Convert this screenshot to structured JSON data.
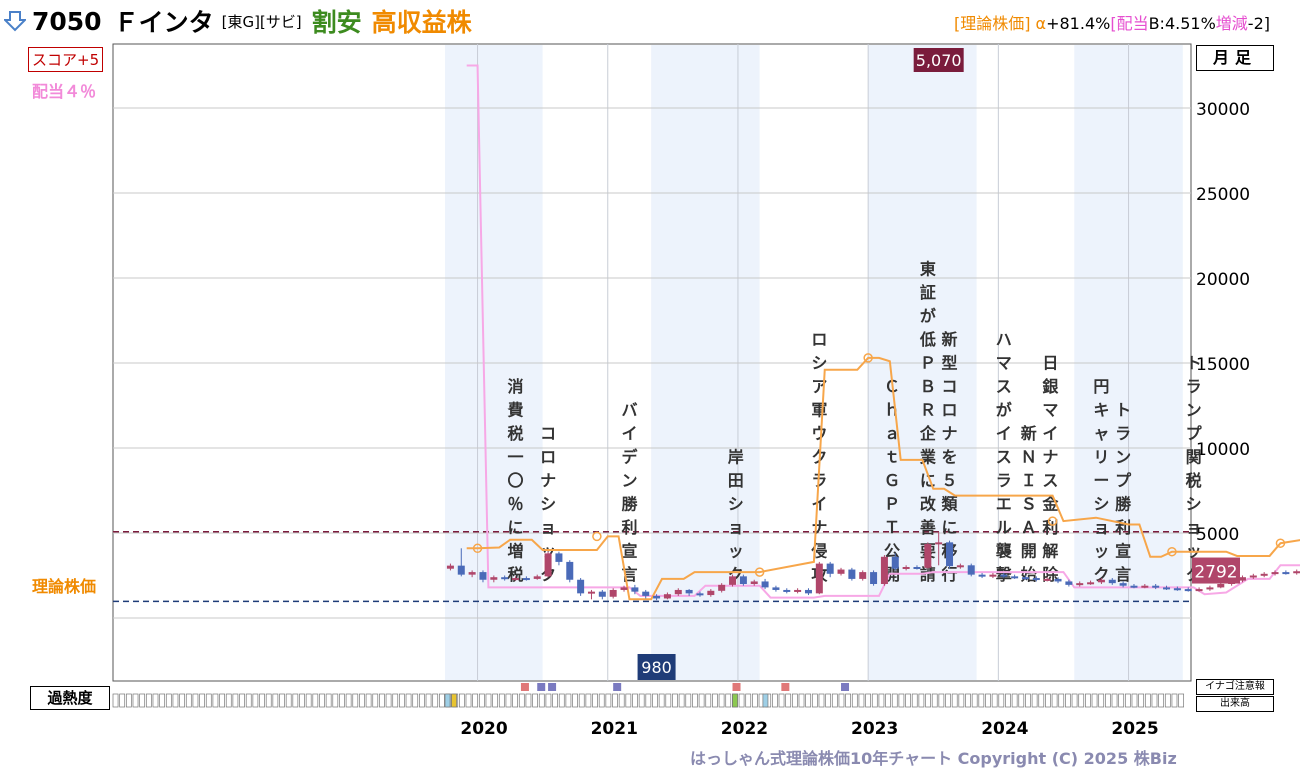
{
  "header": {
    "arrow_icon": "down-arrow-icon",
    "code": "7050",
    "name": "Ｆインタ",
    "tags": "[東G][サビ]",
    "valuation": "割安",
    "category": "高収益株",
    "riron_label": "[理論株価]",
    "alpha_label": "α",
    "alpha": "+81.4%",
    "haito_label": "[配当",
    "haito_value": "B:4.51%",
    "zougen_label": "増減",
    "zougen_value": "-2]"
  },
  "badges": {
    "score": "スコア+5",
    "haito": "配当４％",
    "riron": "理論株価",
    "timeframe": "月足",
    "overheat": "過熱度",
    "legend_inago": "イナゴ注意報",
    "legend_volume": "出来高",
    "copyright": "はっしゃん式理論株価10年チャート Copyright (C) 2025 株Biz"
  },
  "colors": {
    "theory": "#f7a64a",
    "dividend": "#f7a8e6",
    "candle_up": "#b0466a",
    "candle_down": "#4a6ab8",
    "max_line": "#7a1c3c",
    "min_line": "#1f3c78",
    "band": "#edf3fc"
  },
  "chart_data": {
    "type": "candlestick",
    "ylim": [
      -2000,
      34000
    ],
    "y_ticks": [
      5000,
      10000,
      15000,
      20000,
      25000,
      30000
    ],
    "y_tick_labels": [
      "5000",
      "10000",
      "15000",
      "20000",
      "25000",
      "30000"
    ],
    "x_labels": [
      "2020",
      "2021",
      "2022",
      "2023",
      "2024",
      "2025"
    ],
    "year_start_month": [
      3,
      15,
      27,
      39,
      51,
      63
    ],
    "month_count": 80,
    "max_price": 5070,
    "max_label": "5,070",
    "min_price": 980,
    "min_label": "980",
    "current_price": 2792,
    "current_label": "2792",
    "candles": [
      [
        0,
        2900,
        3080,
        2800,
        3200
      ],
      [
        1,
        3080,
        2550,
        2450,
        4100
      ],
      [
        2,
        2550,
        2700,
        2400,
        2800
      ],
      [
        3,
        2700,
        2250,
        2100,
        2800
      ],
      [
        4,
        2250,
        2400,
        2100,
        2500
      ],
      [
        5,
        2400,
        2300,
        2200,
        2500
      ],
      [
        6,
        2300,
        2350,
        2200,
        2450
      ],
      [
        7,
        2350,
        2300,
        2200,
        2450
      ],
      [
        8,
        2300,
        2450,
        2250,
        2550
      ],
      [
        9,
        2450,
        3800,
        2400,
        3900
      ],
      [
        10,
        3800,
        3300,
        3100,
        3900
      ],
      [
        11,
        3300,
        2250,
        2100,
        3400
      ],
      [
        12,
        2250,
        1450,
        1300,
        2350
      ],
      [
        13,
        1450,
        1550,
        1100,
        1650
      ],
      [
        14,
        1550,
        1250,
        1100,
        1650
      ],
      [
        15,
        1250,
        1650,
        1150,
        1750
      ],
      [
        16,
        1650,
        1800,
        1550,
        1900
      ],
      [
        17,
        1800,
        1550,
        1400,
        1950
      ],
      [
        18,
        1550,
        1300,
        1150,
        1650
      ],
      [
        19,
        1300,
        1150,
        1050,
        1400
      ],
      [
        20,
        1150,
        1400,
        1100,
        1500
      ],
      [
        21,
        1400,
        1650,
        1300,
        1750
      ],
      [
        22,
        1650,
        1450,
        1300,
        1700
      ],
      [
        23,
        1450,
        1350,
        1250,
        1550
      ],
      [
        24,
        1350,
        1600,
        1250,
        1700
      ],
      [
        25,
        1600,
        1950,
        1500,
        2050
      ],
      [
        26,
        1950,
        2450,
        1850,
        2550
      ],
      [
        27,
        2450,
        2000,
        1900,
        2550
      ],
      [
        28,
        2000,
        2150,
        1900,
        2250
      ],
      [
        29,
        2150,
        1800,
        1700,
        2300
      ],
      [
        30,
        1800,
        1650,
        1550,
        1900
      ],
      [
        31,
        1650,
        1550,
        1450,
        1750
      ],
      [
        32,
        1550,
        1650,
        1450,
        1750
      ],
      [
        33,
        1650,
        1450,
        1350,
        1750
      ],
      [
        34,
        1450,
        3200,
        1400,
        3300
      ],
      [
        35,
        3200,
        2600,
        2400,
        3300
      ],
      [
        36,
        2600,
        2850,
        2500,
        2950
      ],
      [
        37,
        2850,
        2300,
        2200,
        2950
      ],
      [
        38,
        2300,
        2700,
        2200,
        2800
      ],
      [
        39,
        2700,
        2000,
        1900,
        2800
      ],
      [
        40,
        2000,
        3600,
        1900,
        3700
      ],
      [
        41,
        3600,
        2900,
        2800,
        3800
      ],
      [
        42,
        2900,
        3000,
        2800,
        3100
      ],
      [
        43,
        3000,
        2950,
        2850,
        3100
      ],
      [
        44,
        2950,
        4350,
        2900,
        4450
      ],
      [
        45,
        4350,
        4450,
        3100,
        5070
      ],
      [
        46,
        4450,
        3050,
        2900,
        4550
      ],
      [
        47,
        3050,
        3100,
        2900,
        3200
      ],
      [
        48,
        3100,
        2550,
        2450,
        3200
      ],
      [
        49,
        2550,
        2450,
        2350,
        2650
      ],
      [
        50,
        2450,
        2550,
        2350,
        2650
      ],
      [
        51,
        2550,
        2450,
        2350,
        2650
      ],
      [
        52,
        2450,
        2400,
        2300,
        2550
      ],
      [
        53,
        2400,
        2350,
        2250,
        2500
      ],
      [
        54,
        2350,
        2250,
        2150,
        2450
      ],
      [
        55,
        2250,
        2300,
        2150,
        2400
      ],
      [
        56,
        2300,
        2150,
        2050,
        2400
      ],
      [
        57,
        2150,
        1950,
        1850,
        2250
      ],
      [
        58,
        1950,
        2050,
        1850,
        2150
      ],
      [
        59,
        2050,
        2100,
        1950,
        2200
      ],
      [
        60,
        2100,
        2250,
        2000,
        2350
      ],
      [
        61,
        2250,
        2050,
        1950,
        2350
      ],
      [
        62,
        2050,
        1900,
        1800,
        2150
      ],
      [
        63,
        1900,
        1850,
        1750,
        2000
      ],
      [
        64,
        1850,
        1900,
        1750,
        2000
      ],
      [
        65,
        1900,
        1800,
        1700,
        2000
      ],
      [
        66,
        1800,
        1750,
        1650,
        1900
      ],
      [
        67,
        1750,
        1700,
        1600,
        1850
      ],
      [
        68,
        1700,
        1650,
        1550,
        1800
      ],
      [
        69,
        1650,
        1700,
        1550,
        1800
      ],
      [
        70,
        1700,
        1800,
        1600,
        1900
      ],
      [
        71,
        1800,
        2000,
        1750,
        2100
      ],
      [
        72,
        2000,
        2200,
        1900,
        2300
      ],
      [
        73,
        2200,
        2400,
        2100,
        2500
      ],
      [
        74,
        2400,
        2500,
        2300,
        2600
      ],
      [
        75,
        2500,
        2600,
        2400,
        2700
      ],
      [
        76,
        2600,
        2700,
        2500,
        2800
      ],
      [
        77,
        2700,
        2650,
        2550,
        2800
      ],
      [
        78,
        2650,
        2750,
        2550,
        2850
      ],
      [
        79,
        2750,
        2792,
        2650,
        2900
      ]
    ],
    "theory_line": [
      [
        2,
        4100
      ],
      [
        3,
        4100
      ],
      [
        5,
        4150
      ],
      [
        6,
        4600
      ],
      [
        8,
        4600
      ],
      [
        9,
        4000
      ],
      [
        14,
        4000
      ],
      [
        15,
        4800
      ],
      [
        16,
        4800
      ],
      [
        17,
        1100
      ],
      [
        19,
        1100
      ],
      [
        20,
        2300
      ],
      [
        22,
        2300
      ],
      [
        23,
        2700
      ],
      [
        29,
        2700
      ],
      [
        34,
        3300
      ],
      [
        35,
        14600
      ],
      [
        38,
        14600
      ],
      [
        39,
        15300
      ],
      [
        40,
        15300
      ],
      [
        41,
        15100
      ],
      [
        42,
        9300
      ],
      [
        44,
        9300
      ],
      [
        45,
        7600
      ],
      [
        46,
        7600
      ],
      [
        47,
        7200
      ],
      [
        56,
        7200
      ],
      [
        57,
        5700
      ],
      [
        60,
        5900
      ],
      [
        63,
        5500
      ],
      [
        64,
        5500
      ],
      [
        65,
        3600
      ],
      [
        66,
        3600
      ],
      [
        67,
        3900
      ],
      [
        72,
        3900
      ],
      [
        73,
        3650
      ],
      [
        76,
        3650
      ],
      [
        77,
        4400
      ],
      [
        79,
        4600
      ],
      [
        80,
        5200
      ]
    ],
    "theory_markers": [
      [
        3,
        4100
      ],
      [
        14,
        4800
      ],
      [
        29,
        2700
      ],
      [
        39,
        15300
      ],
      [
        56,
        5700
      ],
      [
        67,
        3900
      ],
      [
        77,
        4400
      ]
    ],
    "dividend_line": [
      [
        2,
        32500
      ],
      [
        3,
        32500
      ],
      [
        4,
        1800
      ],
      [
        17,
        1800
      ],
      [
        18,
        1300
      ],
      [
        23,
        1300
      ],
      [
        24,
        1900
      ],
      [
        29,
        1900
      ],
      [
        30,
        1200
      ],
      [
        34,
        1200
      ],
      [
        35,
        1300
      ],
      [
        40,
        1300
      ],
      [
        41,
        2600
      ],
      [
        44,
        2600
      ],
      [
        45,
        2700
      ],
      [
        57,
        2700
      ],
      [
        58,
        1800
      ],
      [
        69,
        1800
      ],
      [
        70,
        1400
      ],
      [
        72,
        1500
      ],
      [
        74,
        2300
      ],
      [
        76,
        2300
      ],
      [
        77,
        3100
      ],
      [
        80,
        3100
      ],
      [
        80.5,
        1900
      ]
    ],
    "bands": [
      [
        0,
        9
      ],
      [
        19,
        29
      ],
      [
        39,
        49
      ],
      [
        58,
        68
      ]
    ],
    "events": [
      {
        "label": "消費税一〇％に増税",
        "month": 6.5
      },
      {
        "label": "コロナショック",
        "month": 9.5
      },
      {
        "label": "バイデン勝利宣言",
        "month": 17
      },
      {
        "label": "岸田ショック",
        "month": 26.8
      },
      {
        "label": "ロシア軍ウクライナ侵攻",
        "month": 34.5
      },
      {
        "label": "ＣｈａｔＧＰＴ公開",
        "month": 41.2
      },
      {
        "label": "東証が低ＰＢＲ企業に改善要請",
        "month": 44.5
      },
      {
        "label": "新型コロナを５類に移行",
        "month": 46.5
      },
      {
        "label": "ハマスがイスラエル襲撃",
        "month": 51.5
      },
      {
        "label": "新ＮＩＳＡ開始",
        "month": 53.8
      },
      {
        "label": "日銀マイナス金利解除",
        "month": 55.8
      },
      {
        "label": "円キャリーショック",
        "month": 60.5
      },
      {
        "label": "トランプ勝利宣言",
        "month": 62.5
      },
      {
        "label": "トランプ関税ショック",
        "month": 69
      }
    ],
    "heat_markers": [
      [
        7,
        "#e07878"
      ],
      [
        8.5,
        "#7a7ac0"
      ],
      [
        9.5,
        "#7a7ac0"
      ],
      [
        15.5,
        "#7a7ac0"
      ],
      [
        26.5,
        "#e07878"
      ],
      [
        31,
        "#e07878"
      ],
      [
        36.5,
        "#7a7ac0"
      ]
    ],
    "heat_cells": [
      [
        0,
        "#9ecfe6"
      ],
      [
        0.6,
        "#e8c430"
      ],
      [
        26.5,
        "#8cc850"
      ],
      [
        29.3,
        "#9ecfe6"
      ]
    ]
  }
}
